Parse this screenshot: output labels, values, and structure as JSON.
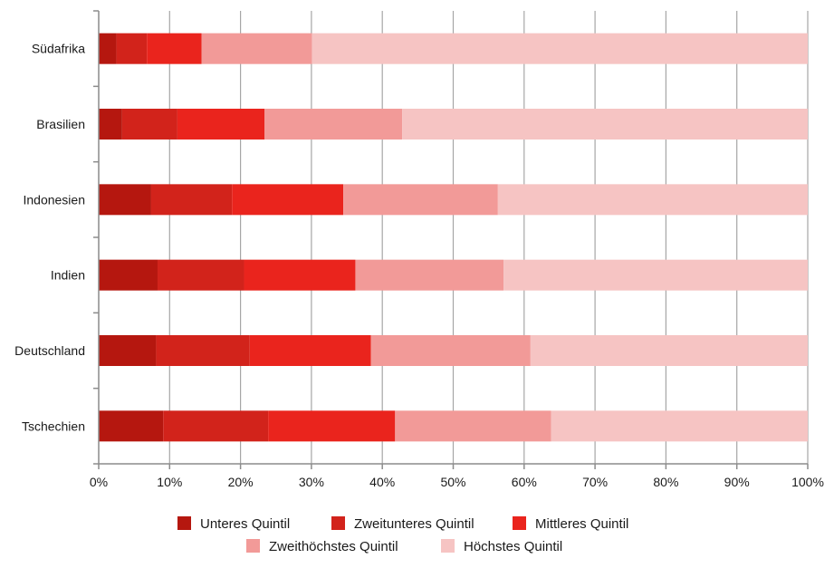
{
  "chart_data": {
    "type": "bar",
    "orientation": "horizontal",
    "stacked": "percent",
    "title": "",
    "xlabel": "",
    "ylabel": "",
    "xlim": [
      0,
      100
    ],
    "grid": true,
    "legend_position": "bottom",
    "categories": [
      "Südafrika",
      "Brasilien",
      "Indonesien",
      "Indien",
      "Deutschland",
      "Tschechien"
    ],
    "x_tick_labels": [
      "0%",
      "10%",
      "20%",
      "30%",
      "40%",
      "50%",
      "60%",
      "70%",
      "80%",
      "90%",
      "100%"
    ],
    "series": [
      {
        "name": "Unteres Quintil",
        "color": "#b5170f",
        "values": [
          2.5,
          3.3,
          7.4,
          8.3,
          8.1,
          9.1
        ]
      },
      {
        "name": "Zweitunteres Quintil",
        "color": "#d2231b",
        "values": [
          4.3,
          7.8,
          11.4,
          12.2,
          13.2,
          14.8
        ]
      },
      {
        "name": "Mittleres Quintil",
        "color": "#ea241d",
        "values": [
          7.7,
          12.3,
          15.7,
          15.7,
          17.1,
          17.9
        ]
      },
      {
        "name": "Zweithöchstes Quintil",
        "color": "#f29a98",
        "values": [
          15.6,
          19.4,
          21.8,
          20.9,
          22.5,
          22.0
        ]
      },
      {
        "name": "Höchstes Quintil",
        "color": "#f6c4c3",
        "values": [
          69.9,
          57.2,
          43.7,
          42.9,
          39.1,
          36.2
        ]
      }
    ]
  }
}
